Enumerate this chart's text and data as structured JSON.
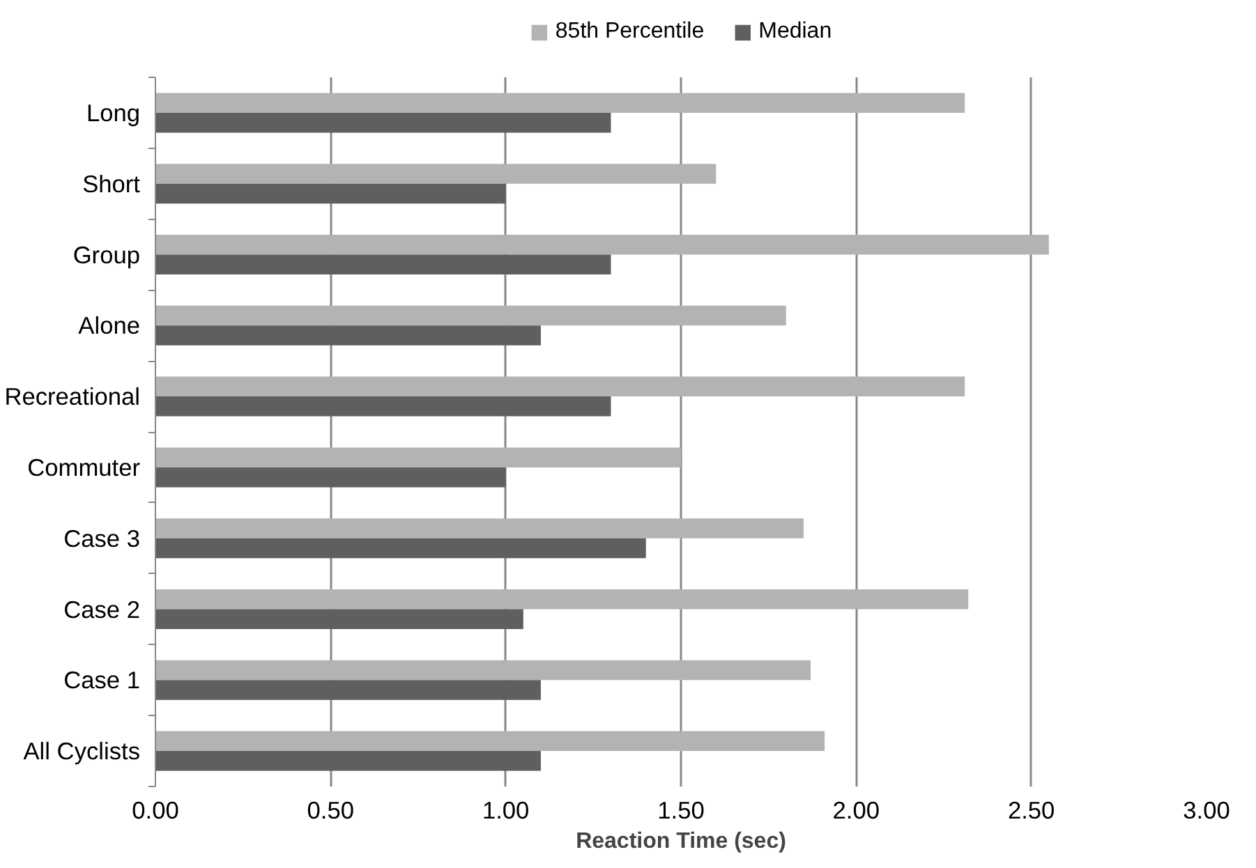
{
  "chart_data": {
    "type": "bar",
    "orientation": "horizontal",
    "categories": [
      "Long",
      "Short",
      "Group",
      "Alone",
      "Recreational",
      "Commuter",
      "Case 3",
      "Case 2",
      "Case 1",
      "All Cyclists"
    ],
    "series": [
      {
        "name": "85th Percentile",
        "color": "#b3b3b3",
        "values": [
          2.31,
          1.6,
          2.55,
          1.8,
          2.31,
          1.5,
          1.85,
          2.32,
          1.87,
          1.91
        ]
      },
      {
        "name": "Median",
        "color": "#5f5f5f",
        "values": [
          1.3,
          1.0,
          1.3,
          1.1,
          1.3,
          1.0,
          1.4,
          1.05,
          1.1,
          1.1
        ]
      }
    ],
    "xlabel": "Reaction Time (sec)",
    "xlim": [
      0,
      3
    ],
    "xticks": [
      {
        "value": 0,
        "label": "0.00"
      },
      {
        "value": 0.5,
        "label": "0.50"
      },
      {
        "value": 1,
        "label": "1.00"
      },
      {
        "value": 1.5,
        "label": "1.50"
      },
      {
        "value": 2,
        "label": "2.00"
      },
      {
        "value": 2.5,
        "label": "2.50"
      },
      {
        "value": 3,
        "label": "3.00"
      }
    ],
    "grid": "x",
    "legend": "top"
  }
}
